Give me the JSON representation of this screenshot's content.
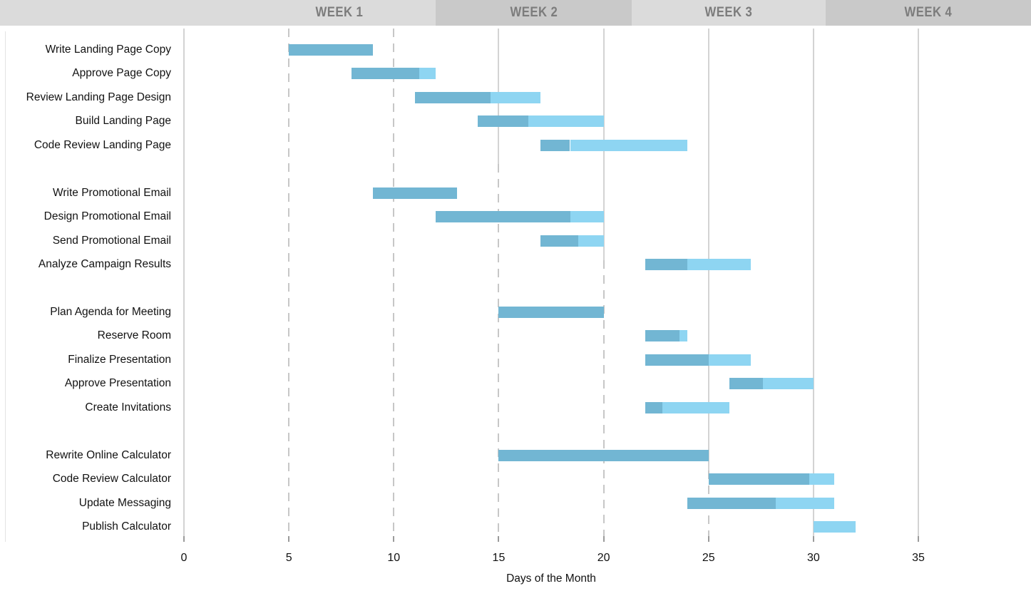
{
  "header": {
    "weeks": [
      {
        "label": "WEEK 1",
        "shade": "light"
      },
      {
        "label": "WEEK 2",
        "shade": "dark"
      },
      {
        "label": "WEEK 3",
        "shade": "light"
      },
      {
        "label": "WEEK 4",
        "shade": "dark"
      }
    ],
    "colors": {
      "light": "#dbdbdb",
      "dark": "#c9c9c9",
      "text": "#7c7c7c"
    }
  },
  "chart_data": {
    "type": "bar",
    "subtype": "gantt",
    "title": "",
    "xlabel": "Days of the Month",
    "x_ticks": [
      0,
      5,
      10,
      15,
      20,
      25,
      30,
      35
    ],
    "xlim": [
      0,
      40.4
    ],
    "grid": "vertical",
    "legend_position": "none",
    "colors": {
      "complete": "#72b6d3",
      "remaining": "#8ed5f2"
    },
    "tasks": [
      {
        "label": "Write Landing Page Copy",
        "start": 5,
        "end": 9,
        "pct_complete": 100,
        "row": 0
      },
      {
        "label": "Approve Page Copy",
        "start": 8,
        "end": 12,
        "pct_complete": 80,
        "row": 1
      },
      {
        "label": "Review Landing Page Design",
        "start": 11,
        "end": 17,
        "pct_complete": 60,
        "row": 2
      },
      {
        "label": "Build Landing Page",
        "start": 14,
        "end": 20,
        "pct_complete": 40,
        "row": 3
      },
      {
        "label": "Code Review Landing Page",
        "start": 17,
        "end": 24,
        "pct_complete": 20,
        "row": 4
      },
      {
        "label": "Write Promotional Email",
        "start": 9,
        "end": 13,
        "pct_complete": 100,
        "row": 6
      },
      {
        "label": "Design Promotional Email",
        "start": 12,
        "end": 20,
        "pct_complete": 80,
        "row": 7
      },
      {
        "label": "Send Promotional Email",
        "start": 17,
        "end": 20,
        "pct_complete": 60,
        "row": 8
      },
      {
        "label": "Analyze Campaign Results",
        "start": 22,
        "end": 27,
        "pct_complete": 40,
        "row": 9
      },
      {
        "label": "Plan Agenda for Meeting",
        "start": 15,
        "end": 20,
        "pct_complete": 100,
        "row": 11
      },
      {
        "label": "Reserve Room",
        "start": 22,
        "end": 24,
        "pct_complete": 80,
        "row": 12
      },
      {
        "label": "Finalize Presentation",
        "start": 22,
        "end": 27,
        "pct_complete": 60,
        "row": 13
      },
      {
        "label": "Approve Presentation",
        "start": 26,
        "end": 30,
        "pct_complete": 40,
        "row": 14
      },
      {
        "label": "Create Invitations",
        "start": 22,
        "end": 26,
        "pct_complete": 20,
        "row": 15
      },
      {
        "label": "Rewrite Online Calculator",
        "start": 15,
        "end": 25,
        "pct_complete": 100,
        "row": 17
      },
      {
        "label": "Code Review Calculator",
        "start": 25,
        "end": 31,
        "pct_complete": 80,
        "row": 18
      },
      {
        "label": "Update Messaging",
        "start": 24,
        "end": 31,
        "pct_complete": 60,
        "row": 19
      },
      {
        "label": "Publish Calculator",
        "start": 30,
        "end": 32,
        "pct_complete": 0,
        "row": 20
      }
    ]
  }
}
